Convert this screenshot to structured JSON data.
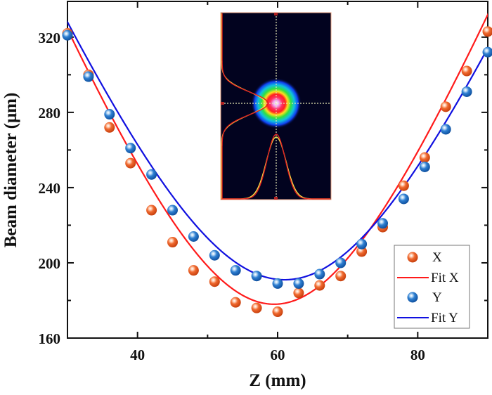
{
  "chart_data": {
    "type": "scatter",
    "title": "",
    "xlabel": "Z (mm)",
    "ylabel": "Beam diameter (μm)",
    "xlim": [
      30,
      90
    ],
    "ylim": [
      160,
      339
    ],
    "xticks": [
      40,
      60,
      80
    ],
    "xticks_minor": [
      50,
      70
    ],
    "yticks": [
      160,
      200,
      240,
      280,
      320
    ],
    "yticks_minor": [
      180,
      220,
      260,
      300
    ],
    "xtick_labels": [
      "40",
      "60",
      "80"
    ],
    "ytick_labels": [
      "160",
      "200",
      "240",
      "280",
      "320"
    ],
    "grid": false,
    "legend_position": "bottom-right",
    "series": [
      {
        "name": "X",
        "kind": "scatter",
        "color": "#e8501c",
        "x": [
          30,
          33,
          36,
          39,
          42,
          45,
          48,
          51,
          54,
          57,
          60,
          63,
          66,
          69,
          72,
          75,
          78,
          81,
          84,
          87,
          90
        ],
        "y": [
          322,
          300,
          272,
          253,
          228,
          211,
          196,
          190,
          179,
          176,
          174,
          184,
          188,
          193,
          206,
          219,
          241,
          256,
          283,
          302,
          323
        ]
      },
      {
        "name": "Fit X",
        "kind": "fit",
        "color": "#ff1a1a",
        "model": "d = sqrt(d0^2 + k*(z - z0)^2)",
        "params": {
          "d0": 178,
          "z0": 59.5,
          "k": 84.4
        }
      },
      {
        "name": "Y",
        "kind": "scatter",
        "color": "#1f6fc7",
        "x": [
          30,
          33,
          36,
          39,
          42,
          45,
          48,
          51,
          54,
          57,
          60,
          63,
          66,
          69,
          72,
          75,
          78,
          81,
          84,
          87,
          90
        ],
        "y": [
          321,
          299,
          279,
          261,
          247,
          228,
          214,
          204,
          196,
          193,
          189,
          189,
          194,
          200,
          210,
          221,
          234,
          251,
          271,
          291,
          312
        ]
      },
      {
        "name": "Fit Y",
        "kind": "fit",
        "color": "#1010e0",
        "model": "d = sqrt(d0^2 + k*(z - z0)^2)",
        "params": {
          "d0": 191,
          "z0": 61,
          "k": 74
        }
      }
    ],
    "legend": [
      "X",
      "Fit X",
      "Y",
      "Fit Y"
    ],
    "inset": {
      "description_type": "beam-profile-image",
      "colors": {
        "background": "#02031f",
        "crosshair": "#e6e6b4",
        "profile_yellow": "#f5e64a",
        "profile_red": "#e02020",
        "border": "#e8a080"
      }
    }
  }
}
